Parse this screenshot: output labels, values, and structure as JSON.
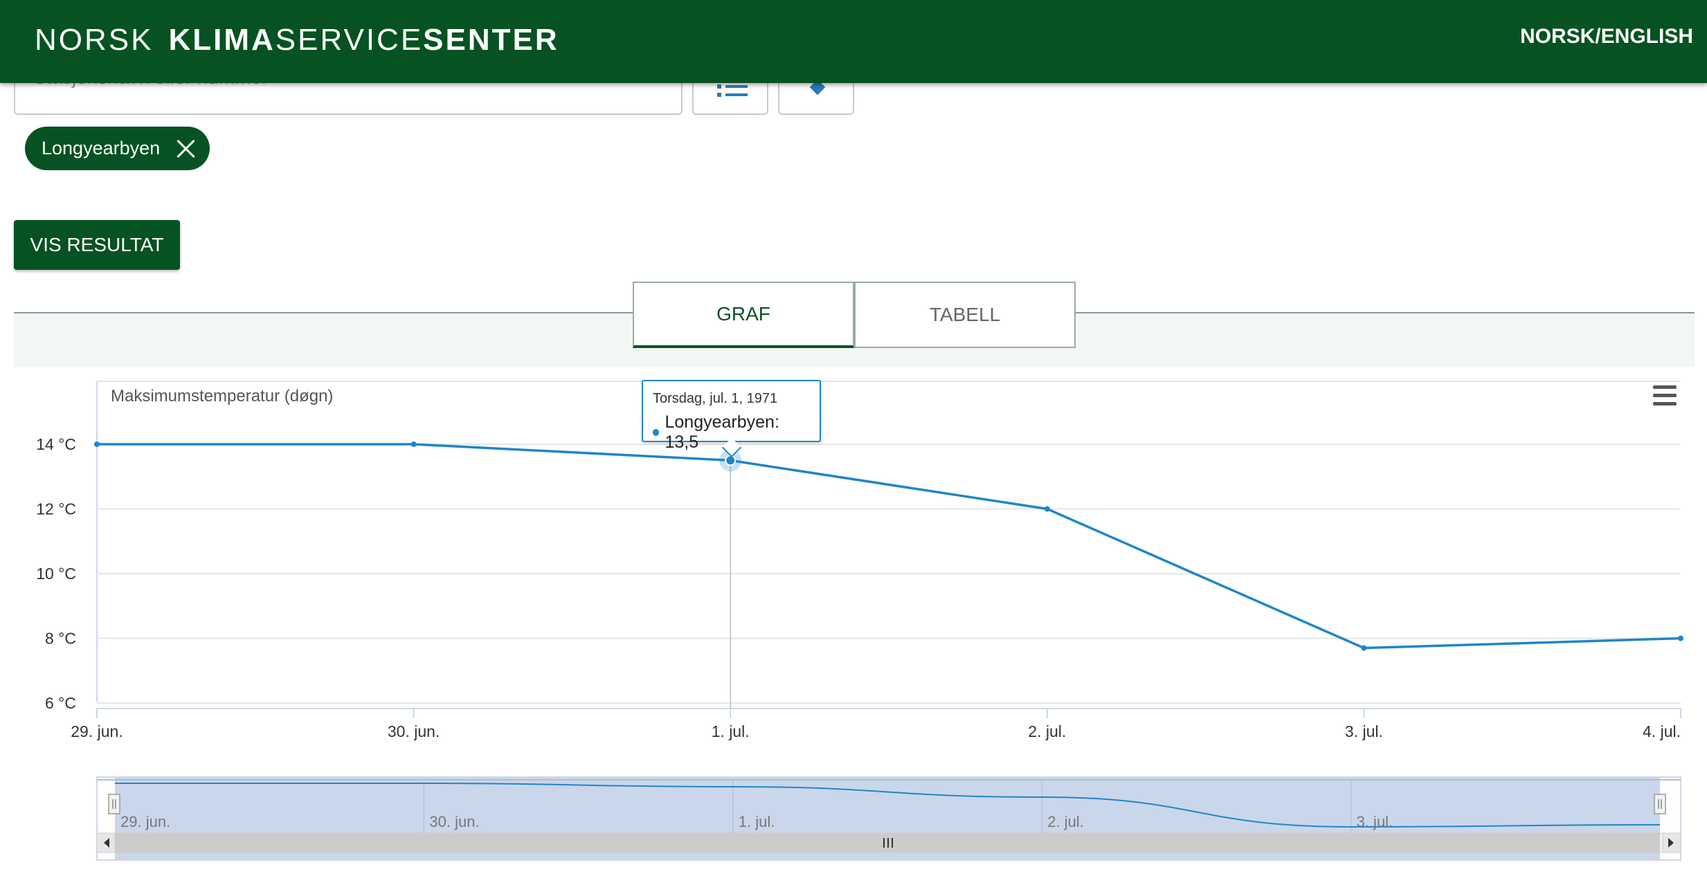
{
  "header": {
    "logo_word1": "NORSK",
    "logo_word2_bold": "KLIMA",
    "logo_word3": "SERVICE",
    "logo_word4_bold": "SENTER",
    "language_link": "NORSK/ENGLISH"
  },
  "search": {
    "placeholder": "Stasjonsnavn eller nummer",
    "list_icon": "list-icon",
    "map_icon": "map-pin-icon"
  },
  "selected_station": "Longyearbyen",
  "result_button": "VIS RESULTAT",
  "tabs": [
    {
      "label": "GRAF",
      "active": true
    },
    {
      "label": "TABELL",
      "active": false
    }
  ],
  "chart": {
    "title": "Maksimumstemperatur (døgn)",
    "tooltip_date": "Torsdag, jul. 1, 1971",
    "tooltip_series": "Longyearbyen: 13,5",
    "navigator_labels": [
      "29. jun.",
      "30. jun.",
      "1. jul.",
      "2. jul.",
      "3. jul."
    ]
  },
  "chart_data": {
    "type": "line",
    "title": "Maksimumstemperatur (døgn)",
    "x": [
      "29. jun.",
      "30. jun.",
      "1. jul.",
      "2. jul.",
      "3. jul.",
      "4. jul."
    ],
    "series": [
      {
        "name": "Longyearbyen",
        "values": [
          14.0,
          14.0,
          13.5,
          12.0,
          7.7,
          8.0
        ]
      }
    ],
    "y_ticks": [
      "6 °C",
      "8 °C",
      "10 °C",
      "12 °C",
      "14 °C"
    ],
    "ylim": [
      6,
      15
    ],
    "grid": true,
    "color": "#1f86c8"
  }
}
